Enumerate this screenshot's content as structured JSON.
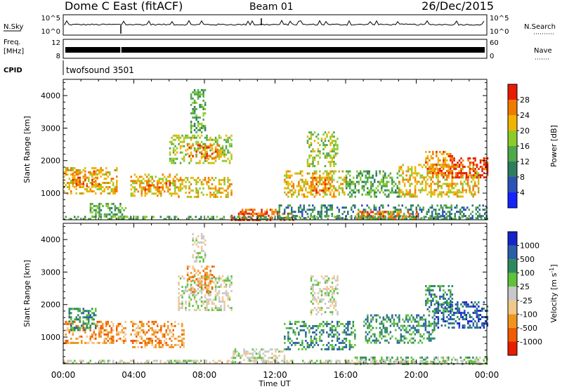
{
  "header": {
    "station": "Dome C East (fitACF)",
    "beam": "Beam 01",
    "date": "26/Dec/2015"
  },
  "strip_labels": {
    "nsky": "N.Sky",
    "freq_line1": "Freq.",
    "freq_line2": "[MHz]",
    "cpid": "CPID",
    "nsearch": "N.Search",
    "nave": "Nave",
    "nsky_top": "10^5",
    "nsky_bottom": "10^0",
    "nsearch_top": "10^5",
    "nsearch_bottom": "10^0",
    "freq_top": "12",
    "freq_bottom": "8",
    "nave_top": "60",
    "nave_bottom": "0",
    "cpid_value": "twofsound 3501"
  },
  "chart_data": [
    {
      "type": "heatmap",
      "title": "",
      "xlabel": "Time UT",
      "ylabel": "Slant Range [km]",
      "x_ticks": [
        "00:00",
        "04:00",
        "08:00",
        "12:00",
        "16:00",
        "20:00",
        "00:00"
      ],
      "xlim_hours": [
        0,
        24
      ],
      "y_ticks": [
        1000,
        2000,
        3000,
        4000
      ],
      "ylim": [
        180,
        4500
      ],
      "colorbar": {
        "label": "Power [dB]",
        "ticks": [
          "4",
          "8",
          "12",
          "16",
          "20",
          "24",
          "28"
        ],
        "range": [
          0,
          32
        ],
        "colors": [
          "#1424ff",
          "#2b52b8",
          "#2e7d5e",
          "#4fa84a",
          "#8ccc2a",
          "#f0b400",
          "#f07a00",
          "#e81c00"
        ]
      },
      "regions": [
        {
          "t": [
            0.0,
            3.0
          ],
          "r": [
            1000,
            1800
          ],
          "v": 20
        },
        {
          "t": [
            0.5,
            2.0
          ],
          "r": [
            1200,
            1700
          ],
          "v": 26
        },
        {
          "t": [
            1.5,
            3.5
          ],
          "r": [
            300,
            700
          ],
          "v": 12
        },
        {
          "t": [
            3.8,
            6.5
          ],
          "r": [
            900,
            1600
          ],
          "v": 22
        },
        {
          "t": [
            4.5,
            6.0
          ],
          "r": [
            1100,
            1400
          ],
          "v": 27
        },
        {
          "t": [
            6.0,
            9.5
          ],
          "r": [
            1900,
            2800
          ],
          "v": 18
        },
        {
          "t": [
            7.0,
            8.8
          ],
          "r": [
            2100,
            2500
          ],
          "v": 24
        },
        {
          "t": [
            7.2,
            8.0
          ],
          "r": [
            2900,
            4200
          ],
          "v": 14
        },
        {
          "t": [
            6.5,
            9.5
          ],
          "r": [
            900,
            1500
          ],
          "v": 20
        },
        {
          "t": [
            9.5,
            13.0
          ],
          "r": [
            200,
            400
          ],
          "v": 29
        },
        {
          "t": [
            10.0,
            12.0
          ],
          "r": [
            380,
            520
          ],
          "v": 24
        },
        {
          "t": [
            12.5,
            16.0
          ],
          "r": [
            900,
            1700
          ],
          "v": 22
        },
        {
          "t": [
            13.8,
            15.5
          ],
          "r": [
            1800,
            2900
          ],
          "v": 16
        },
        {
          "t": [
            14.0,
            15.0
          ],
          "r": [
            1000,
            1500
          ],
          "v": 27
        },
        {
          "t": [
            16.0,
            19.0
          ],
          "r": [
            900,
            1700
          ],
          "v": 14
        },
        {
          "t": [
            19.0,
            23.5
          ],
          "r": [
            900,
            1900
          ],
          "v": 22
        },
        {
          "t": [
            20.5,
            22.0
          ],
          "r": [
            1500,
            2300
          ],
          "v": 27
        },
        {
          "t": [
            22.0,
            24.0
          ],
          "r": [
            1500,
            2100
          ],
          "v": 28
        },
        {
          "t": [
            12.0,
            24.0
          ],
          "r": [
            200,
            650
          ],
          "v": 11
        },
        {
          "t": [
            16.5,
            20.0
          ],
          "r": [
            250,
            450
          ],
          "v": 27
        },
        {
          "t": [
            0.0,
            24.0
          ],
          "r": [
            180,
            300
          ],
          "v": 12
        }
      ]
    },
    {
      "type": "heatmap",
      "title": "",
      "xlabel": "Time UT",
      "ylabel": "Slant Range [km]",
      "x_ticks": [
        "00:00",
        "04:00",
        "08:00",
        "12:00",
        "16:00",
        "20:00",
        "00:00"
      ],
      "xlim_hours": [
        0,
        24
      ],
      "y_ticks": [
        1000,
        2000,
        3000,
        4000
      ],
      "ylim": [
        180,
        4500
      ],
      "colorbar": {
        "label": "Velocity [m s^-1]",
        "ticks": [
          "-1000",
          "-500",
          "-100",
          "-25",
          "25",
          "100",
          "500",
          "1000"
        ],
        "colors": [
          "#e81c00",
          "#f05a00",
          "#f0941e",
          "#f2c88a",
          "#c8c8c8",
          "#5ec23a",
          "#2e8a5e",
          "#2a5ea8",
          "#1424c8"
        ]
      },
      "regions": [
        {
          "t": [
            0.0,
            3.5
          ],
          "r": [
            800,
            1500
          ],
          "v": "-100"
        },
        {
          "t": [
            0.3,
            1.8
          ],
          "r": [
            1200,
            1900
          ],
          "v": "500"
        },
        {
          "t": [
            3.8,
            6.8
          ],
          "r": [
            700,
            1500
          ],
          "v": "-100"
        },
        {
          "t": [
            6.5,
            9.5
          ],
          "r": [
            1800,
            2900
          ],
          "v": "25"
        },
        {
          "t": [
            7.0,
            8.5
          ],
          "r": [
            2400,
            3200
          ],
          "v": "-100"
        },
        {
          "t": [
            7.3,
            8.0
          ],
          "r": [
            3300,
            4200
          ],
          "v": "25"
        },
        {
          "t": [
            9.5,
            12.5
          ],
          "r": [
            200,
            650
          ],
          "v": "25"
        },
        {
          "t": [
            12.5,
            16.5
          ],
          "r": [
            600,
            1500
          ],
          "v": "500"
        },
        {
          "t": [
            14.0,
            15.5
          ],
          "r": [
            1700,
            2900
          ],
          "v": "25"
        },
        {
          "t": [
            16.5,
            24.0
          ],
          "r": [
            200,
            400
          ],
          "v": "100"
        },
        {
          "t": [
            17.0,
            21.0
          ],
          "r": [
            800,
            1700
          ],
          "v": "500"
        },
        {
          "t": [
            21.0,
            24.0
          ],
          "r": [
            1300,
            2100
          ],
          "v": "1000"
        },
        {
          "t": [
            20.5,
            22.0
          ],
          "r": [
            1800,
            2600
          ],
          "v": "500"
        },
        {
          "t": [
            0.0,
            24.0
          ],
          "r": [
            180,
            300
          ],
          "v": "25"
        }
      ]
    }
  ]
}
